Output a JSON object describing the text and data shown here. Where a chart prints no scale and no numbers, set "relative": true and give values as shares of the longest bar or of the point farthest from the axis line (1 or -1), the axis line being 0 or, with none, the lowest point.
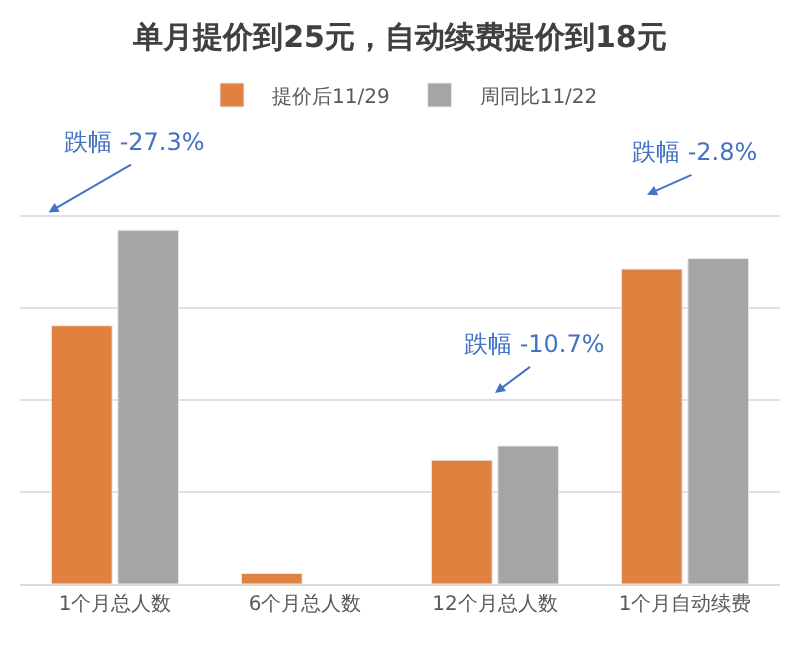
{
  "chart_data": {
    "type": "bar",
    "title": "单月提价到25元，自动续费提价到18元",
    "categories": [
      "1个月总人数",
      "6个月总人数",
      "12个月总人数",
      "1个月自动续费"
    ],
    "relative": true,
    "series": [
      {
        "name": "提价后11/29",
        "color": "#e0813f",
        "values": [
          0.73,
          0.03,
          0.35,
          0.89
        ]
      },
      {
        "name": "周同比11/22",
        "color": "#a5a5a5",
        "values": [
          1.0,
          null,
          0.39,
          0.92
        ]
      }
    ],
    "annotations": [
      "跌幅 -27.3%",
      "跌幅 -10.7%",
      "跌幅 -2.8%"
    ],
    "grid": "y",
    "legend": "top"
  }
}
